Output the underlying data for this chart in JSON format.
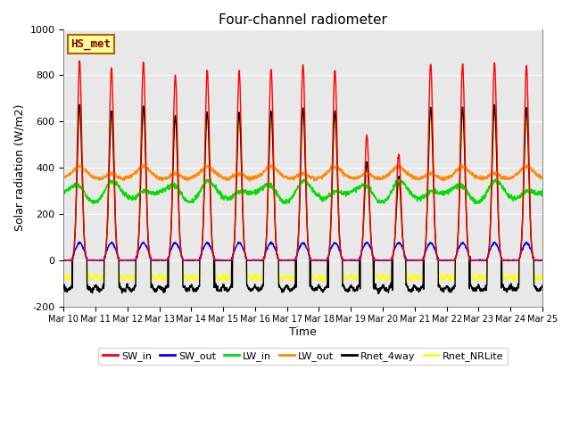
{
  "title": "Four-channel radiometer",
  "xlabel": "Time",
  "ylabel": "Solar radiation (W/m2)",
  "ylim": [
    -200,
    1000
  ],
  "xlim": [
    0,
    15
  ],
  "background_color": "#e8e8e8",
  "annotation_text": "HS_met",
  "annotation_bg": "#ffff99",
  "annotation_border": "#aa6600",
  "xtick_labels": [
    "Mar 10",
    "Mar 11",
    "Mar 12",
    "Mar 13",
    "Mar 14",
    "Mar 15",
    "Mar 16",
    "Mar 17",
    "Mar 18",
    "Mar 19",
    "Mar 20",
    "Mar 21",
    "Mar 22",
    "Mar 23",
    "Mar 24",
    "Mar 25"
  ],
  "series": {
    "SW_in": {
      "color": "#ff0000",
      "lw": 1.0
    },
    "SW_out": {
      "color": "#0000ff",
      "lw": 1.0
    },
    "LW_in": {
      "color": "#00dd00",
      "lw": 1.0
    },
    "LW_out": {
      "color": "#ff8800",
      "lw": 1.0
    },
    "Rnet_4way": {
      "color": "#000000",
      "lw": 1.0
    },
    "Rnet_NRLite": {
      "color": "#ffff00",
      "lw": 1.0
    }
  },
  "legend_colors": {
    "SW_in": "#ff0000",
    "SW_out": "#0000ff",
    "LW_in": "#00dd00",
    "LW_out": "#ff8800",
    "Rnet_4way": "#000000",
    "Rnet_NRLite": "#ffff00"
  },
  "SW_in_peaks": [
    860,
    830,
    855,
    800,
    820,
    820,
    830,
    845,
    825,
    540,
    460,
    850,
    845,
    855,
    840
  ],
  "figsize": [
    6.4,
    4.8
  ],
  "dpi": 100
}
